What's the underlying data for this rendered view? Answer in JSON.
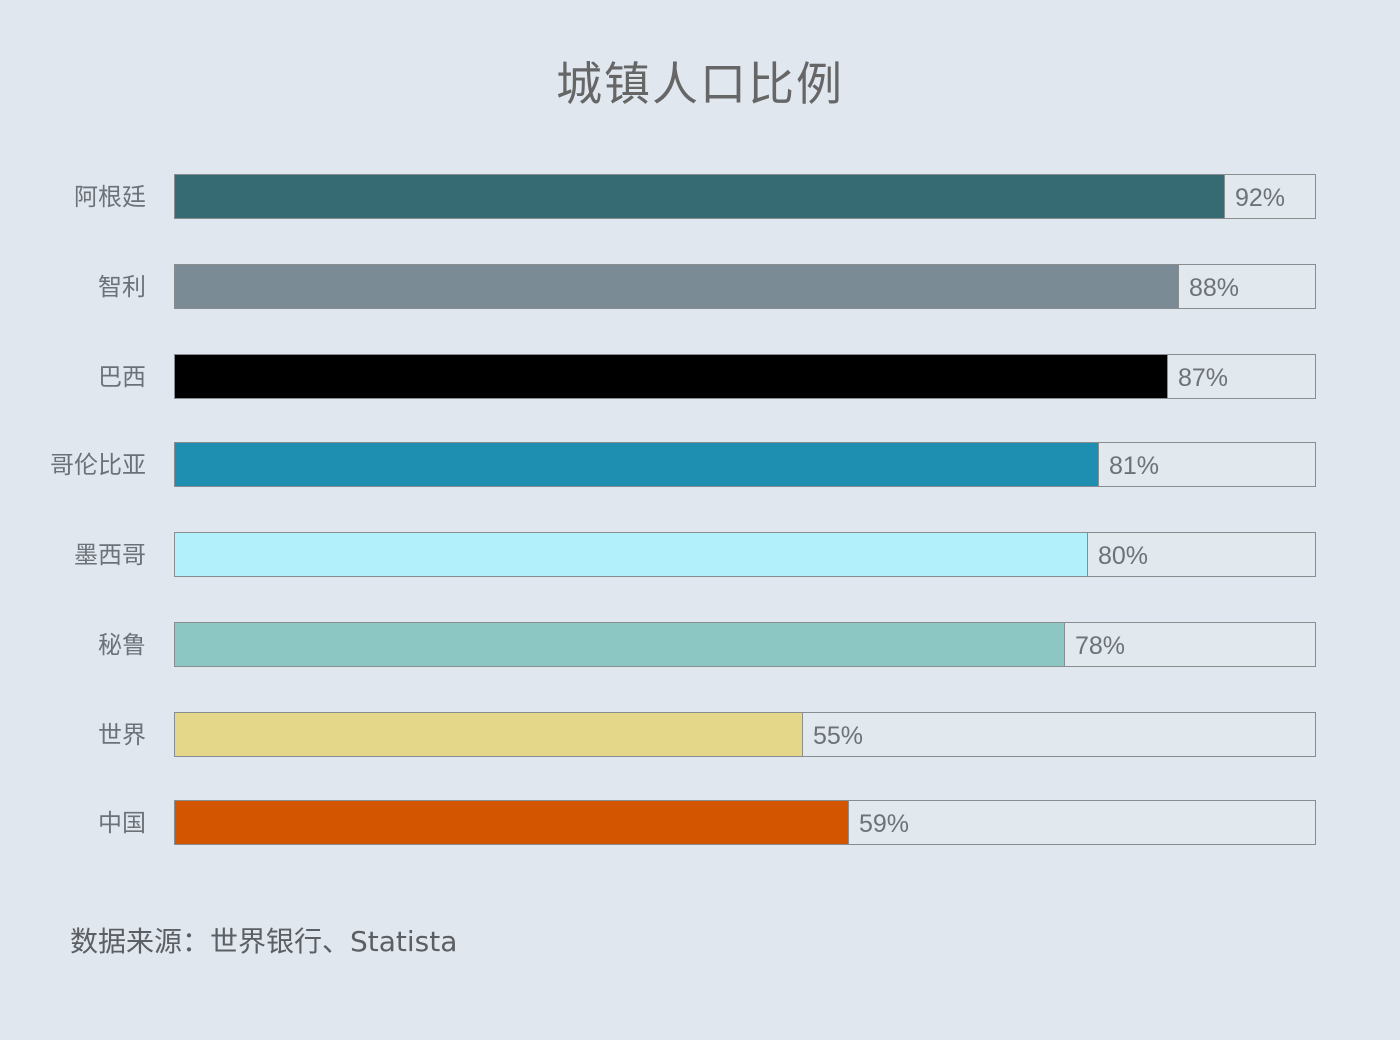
{
  "chart_data": {
    "type": "bar",
    "orientation": "horizontal",
    "title": "城镇人口比例",
    "categories": [
      "阿根廷",
      "智利",
      "巴西",
      "哥伦比亚",
      "墨西哥",
      "秘鲁",
      "世界",
      "中国"
    ],
    "values": [
      92,
      88,
      87,
      81,
      80,
      78,
      55,
      59
    ],
    "value_labels": [
      "92%",
      "88%",
      "87%",
      "81%",
      "80%",
      "78%",
      "55%",
      "59%"
    ],
    "colors": [
      "#376b73",
      "#7b8b96",
      "#000000",
      "#1e8fb0",
      "#b2f0fc",
      "#8cc7c4",
      "#e5d78a",
      "#d45500"
    ],
    "xlabel": "",
    "ylabel": "",
    "xlim": [
      0,
      100
    ],
    "unit": "%",
    "grid": false,
    "legend": "none",
    "source": "数据来源：世界银行、Statista"
  },
  "header": {
    "title": "城镇人口比例"
  },
  "footer": {
    "source": "数据来源：世界银行、Statista"
  }
}
